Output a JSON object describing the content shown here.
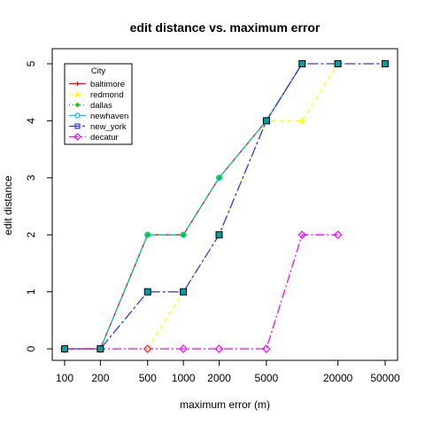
{
  "chart_data": {
    "type": "line",
    "title": "edit distance vs. maximum error",
    "xlabel": "maximum error (m)",
    "ylabel": "edit distance",
    "x_scale": "log",
    "xlim": [
      100,
      50000
    ],
    "ylim": [
      0,
      5
    ],
    "x_ticks": [
      100,
      200,
      500,
      1000,
      2000,
      5000,
      20000,
      50000
    ],
    "x_tick_labels": [
      "100",
      "200",
      "500",
      "1000",
      "2000",
      "5000",
      "20000",
      "50000"
    ],
    "y_ticks": [
      0,
      1,
      2,
      3,
      4,
      5
    ],
    "y_tick_labels": [
      "0",
      "1",
      "2",
      "3",
      "4",
      "5"
    ],
    "grid": false,
    "legend": {
      "title": "City",
      "position": "top-left"
    },
    "series": [
      {
        "name": "baltimore",
        "color": "#ff0000",
        "marker": "plus",
        "dash": "",
        "points": [
          [
            100,
            0
          ],
          [
            200,
            0
          ],
          [
            500,
            2
          ],
          [
            1000,
            2
          ],
          [
            2000,
            3
          ],
          [
            5000,
            4
          ],
          [
            10000,
            5
          ]
        ]
      },
      {
        "name": "redmond",
        "color": "#ffff00",
        "marker": "triangle",
        "dash": "5,4",
        "points": [
          [
            500,
            0
          ],
          [
            1000,
            1
          ],
          [
            2000,
            2
          ],
          [
            5000,
            4
          ],
          [
            10000,
            4
          ],
          [
            20000,
            5
          ],
          [
            50000,
            5
          ]
        ]
      },
      {
        "name": "dallas",
        "color": "#00cc00",
        "marker": "asterisk",
        "dash": "1,3",
        "points": [
          [
            100,
            0
          ],
          [
            200,
            0
          ],
          [
            500,
            2
          ],
          [
            1000,
            2
          ],
          [
            2000,
            3
          ],
          [
            5000,
            4
          ],
          [
            10000,
            5
          ]
        ]
      },
      {
        "name": "newhaven",
        "color": "#00cccc",
        "marker": "circle",
        "dash": "8,4",
        "points": [
          [
            100,
            0
          ],
          [
            200,
            0
          ],
          [
            500,
            2
          ],
          [
            1000,
            2
          ],
          [
            2000,
            3
          ],
          [
            5000,
            4
          ],
          [
            10000,
            5
          ]
        ]
      },
      {
        "name": "new_york",
        "color": "#3333ff",
        "marker": "square",
        "dash": "12,3,3,3",
        "points": [
          [
            100,
            0
          ],
          [
            200,
            0
          ],
          [
            500,
            1
          ],
          [
            1000,
            1
          ],
          [
            2000,
            2
          ],
          [
            5000,
            4
          ],
          [
            10000,
            5
          ],
          [
            20000,
            5
          ],
          [
            50000,
            5
          ]
        ]
      },
      {
        "name": "decatur",
        "color": "#ff00ff",
        "marker": "diamond",
        "dash": "10,3,2,3",
        "points": [
          [
            100,
            0
          ],
          [
            200,
            0
          ],
          [
            500,
            0
          ],
          [
            1000,
            0
          ],
          [
            2000,
            0
          ],
          [
            5000,
            0
          ],
          [
            10000,
            2
          ],
          [
            20000,
            2
          ]
        ]
      }
    ],
    "overlay": {
      "description": "teal-filled square markers drawn over the new_york points",
      "fill": "#00a0a0",
      "stroke": "#000000",
      "points": [
        [
          100,
          0
        ],
        [
          200,
          0
        ],
        [
          500,
          1
        ],
        [
          1000,
          1
        ],
        [
          2000,
          2
        ],
        [
          5000,
          4
        ],
        [
          10000,
          5
        ],
        [
          20000,
          5
        ],
        [
          50000,
          5
        ]
      ]
    }
  }
}
